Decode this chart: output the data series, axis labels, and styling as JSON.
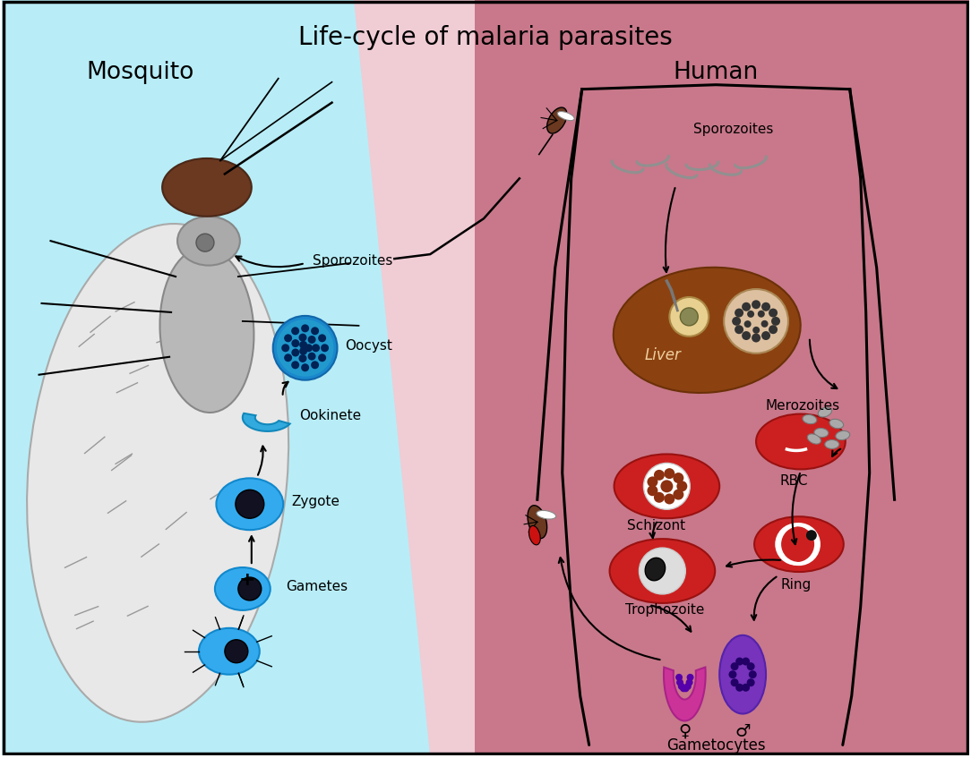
{
  "title": "Life-cycle of malaria parasites",
  "title_fontsize": 20,
  "mosquito_label": "Mosquito",
  "human_label": "Human",
  "label_fontsize": 19,
  "bg_mosquito": "#b8edf7",
  "bg_human": "#c8788a",
  "bg_overlap_color": "#f2d0d8",
  "rbc_color": "#cc2020",
  "liver_color": "#8B4210",
  "oocyst_color": "#2299cc",
  "zygote_color": "#33aaee",
  "gamete_color": "#33aaee",
  "gametocyte_female_color": "#cc3399",
  "gametocyte_male_color": "#7733bb"
}
